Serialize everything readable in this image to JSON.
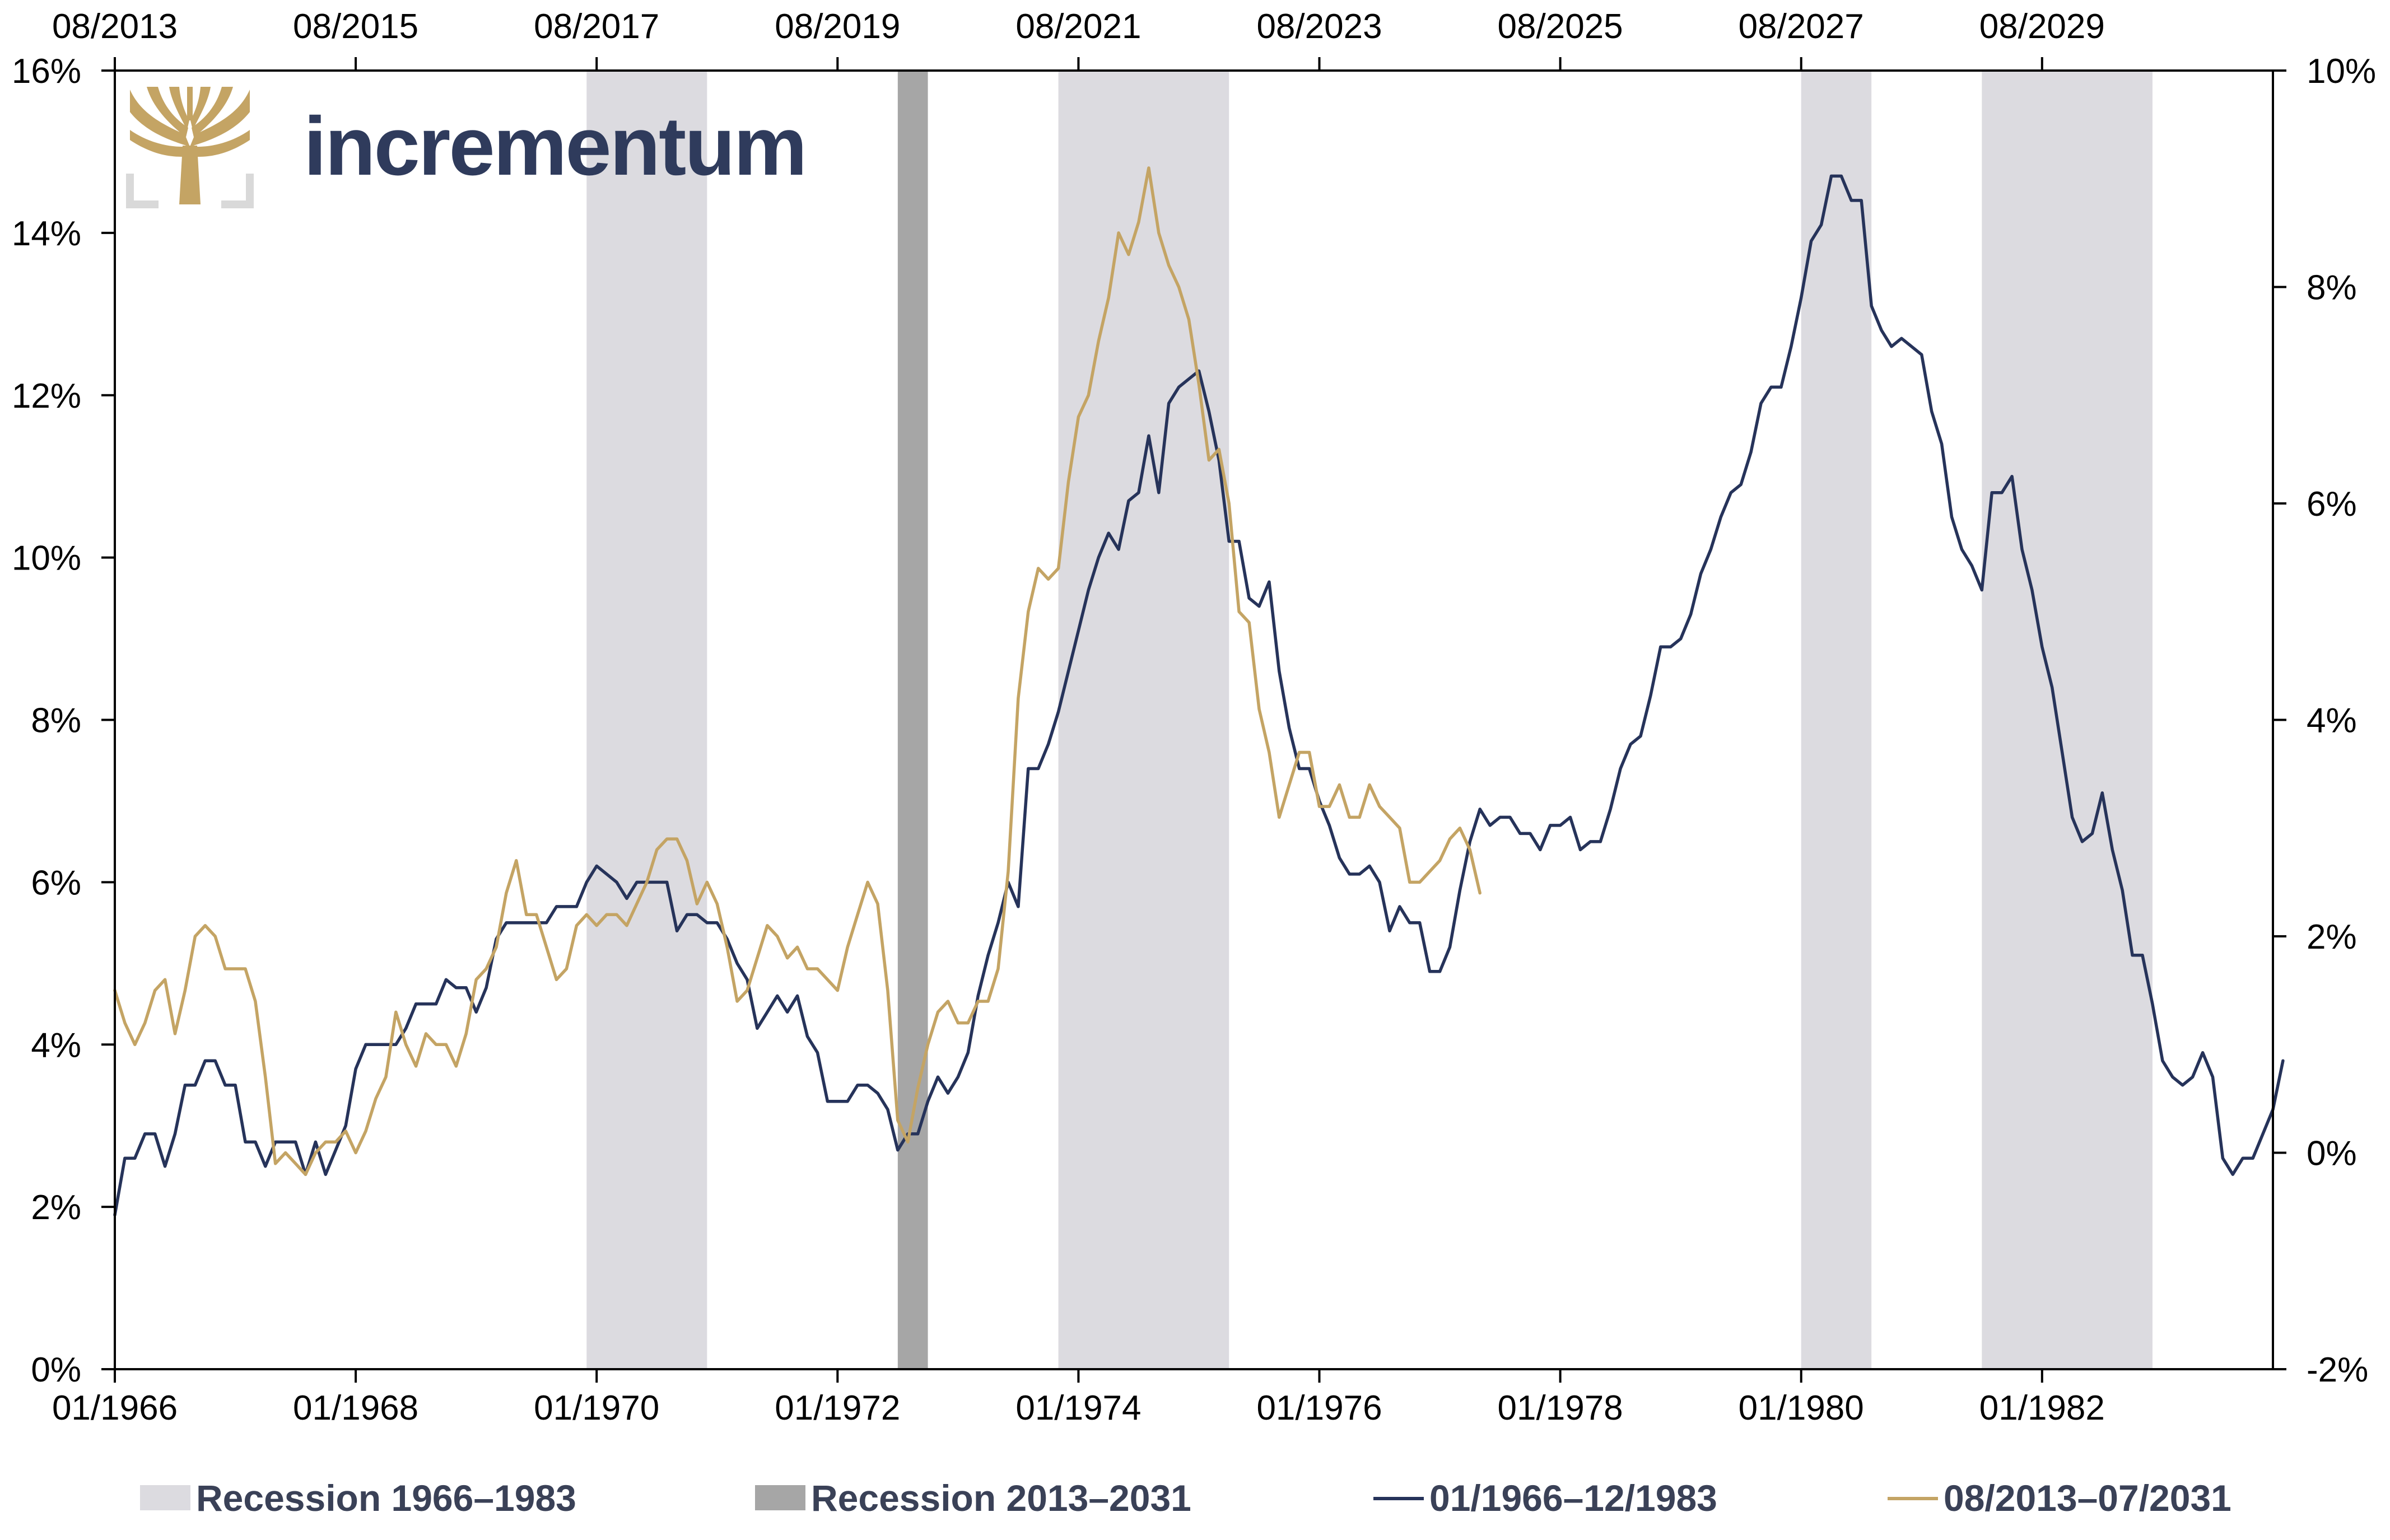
{
  "brand": {
    "name": "incrementum",
    "logo_icon": "tree-icon",
    "color": "#2f3b5c",
    "gold": "#c4a464"
  },
  "chart_data": {
    "type": "line",
    "title": "",
    "x_bottom": {
      "start": "1966-01",
      "end": "1983-12",
      "tick_labels": [
        "01/1966",
        "01/1968",
        "01/1970",
        "01/1972",
        "01/1974",
        "01/1976",
        "01/1978",
        "01/1980",
        "01/1982"
      ]
    },
    "x_top": {
      "start": "2013-08",
      "end": "2031-07",
      "tick_labels": [
        "08/2013",
        "08/2015",
        "08/2017",
        "08/2019",
        "08/2021",
        "08/2023",
        "08/2025",
        "08/2027",
        "08/2029"
      ]
    },
    "y_left": {
      "min": 0,
      "max": 16,
      "step": 2,
      "unit": "%",
      "tick_labels": [
        "0%",
        "2%",
        "4%",
        "6%",
        "8%",
        "10%",
        "12%",
        "14%",
        "16%"
      ]
    },
    "y_right": {
      "min": -2,
      "max": 10,
      "step": 2,
      "unit": "%",
      "tick_labels": [
        "-2%",
        "0%",
        "2%",
        "4%",
        "6%",
        "8%",
        "10%"
      ]
    },
    "grid": false,
    "legend_position": "bottom",
    "recessions": [
      {
        "series": "Recession 1966–1983",
        "start": "1969-12",
        "end": "1970-11",
        "color": "#dcdbe0"
      },
      {
        "series": "Recession 2013–2031",
        "start": "2020-02",
        "end": "2020-04",
        "color": "#a6a6a6"
      },
      {
        "series": "Recession 1966–1983",
        "start": "1973-11",
        "end": "1975-03",
        "color": "#dcdbe0"
      },
      {
        "series": "Recession 1966–1983",
        "start": "1980-01",
        "end": "1980-07",
        "color": "#dcdbe0"
      },
      {
        "series": "Recession 1966–1983",
        "start": "1981-07",
        "end": "1982-11",
        "color": "#dcdbe0"
      }
    ],
    "series": [
      {
        "name": "01/1966–12/1983",
        "axis": "left",
        "color": "#26335a",
        "start": "1966-01",
        "values": [
          1.9,
          2.6,
          2.6,
          2.9,
          2.9,
          2.5,
          2.9,
          3.5,
          3.5,
          3.8,
          3.8,
          3.5,
          3.5,
          2.8,
          2.8,
          2.5,
          2.8,
          2.8,
          2.8,
          2.4,
          2.8,
          2.4,
          2.7,
          3.0,
          3.7,
          4.0,
          4.0,
          4.0,
          4.0,
          4.2,
          4.5,
          4.5,
          4.5,
          4.8,
          4.7,
          4.7,
          4.4,
          4.7,
          5.3,
          5.5,
          5.5,
          5.5,
          5.5,
          5.5,
          5.7,
          5.7,
          5.7,
          6.0,
          6.2,
          6.1,
          6.0,
          5.8,
          6.0,
          6.0,
          6.0,
          6.0,
          5.4,
          5.6,
          5.6,
          5.5,
          5.5,
          5.3,
          5.0,
          4.8,
          4.2,
          4.4,
          4.6,
          4.4,
          4.6,
          4.1,
          3.9,
          3.3,
          3.3,
          3.3,
          3.5,
          3.5,
          3.4,
          3.2,
          2.7,
          2.9,
          2.9,
          3.3,
          3.6,
          3.4,
          3.6,
          3.9,
          4.6,
          5.1,
          5.5,
          6.0,
          5.7,
          7.4,
          7.4,
          7.7,
          8.1,
          8.6,
          9.1,
          9.6,
          10.0,
          10.3,
          10.1,
          10.7,
          10.8,
          11.5,
          10.8,
          11.9,
          12.1,
          12.2,
          12.3,
          11.8,
          11.2,
          10.2,
          10.2,
          9.5,
          9.4,
          9.7,
          8.6,
          7.9,
          7.4,
          7.4,
          7.0,
          6.7,
          6.3,
          6.1,
          6.1,
          6.2,
          6.0,
          5.4,
          5.7,
          5.5,
          5.5,
          4.9,
          4.9,
          5.2,
          5.9,
          6.5,
          6.9,
          6.7,
          6.8,
          6.8,
          6.6,
          6.6,
          6.4,
          6.7,
          6.7,
          6.8,
          6.4,
          6.5,
          6.5,
          6.9,
          7.4,
          7.7,
          7.8,
          8.3,
          8.9,
          8.9,
          9.0,
          9.3,
          9.8,
          10.1,
          10.5,
          10.8,
          10.9,
          11.3,
          11.9,
          12.1,
          12.1,
          12.6,
          13.2,
          13.9,
          14.1,
          14.7,
          14.7,
          14.4,
          14.4,
          13.1,
          12.8,
          12.6,
          12.7,
          12.6,
          12.5,
          11.8,
          11.4,
          10.5,
          10.1,
          9.9,
          9.6,
          10.8,
          10.8,
          11.0,
          10.1,
          9.6,
          8.9,
          8.4,
          7.6,
          6.8,
          6.5,
          6.6,
          7.1,
          6.4,
          5.9,
          5.1,
          5.1,
          4.5,
          3.8,
          3.6,
          3.5,
          3.6,
          3.9,
          3.6,
          2.6,
          2.4,
          2.6,
          2.6,
          2.9,
          3.2,
          3.8
        ]
      },
      {
        "name": "08/2013–07/2031",
        "axis": "right",
        "color": "#c4a464",
        "start": "2013-08",
        "values": [
          1.5,
          1.2,
          1.0,
          1.2,
          1.5,
          1.6,
          1.1,
          1.5,
          2.0,
          2.1,
          2.0,
          1.7,
          1.7,
          1.7,
          1.4,
          0.7,
          -0.1,
          -0.0,
          -0.1,
          -0.2,
          0.0,
          0.1,
          0.1,
          0.2,
          -0.0,
          0.2,
          0.5,
          0.7,
          1.3,
          1.0,
          0.8,
          1.1,
          1.0,
          1.0,
          0.8,
          1.1,
          1.6,
          1.7,
          1.9,
          2.4,
          2.7,
          2.2,
          2.2,
          1.9,
          1.6,
          1.7,
          2.1,
          2.2,
          2.1,
          2.2,
          2.2,
          2.1,
          2.3,
          2.5,
          2.8,
          2.9,
          2.9,
          2.7,
          2.3,
          2.5,
          2.3,
          1.9,
          1.4,
          1.5,
          1.8,
          2.1,
          2.0,
          1.8,
          1.9,
          1.7,
          1.7,
          1.6,
          1.5,
          1.9,
          2.2,
          2.5,
          2.3,
          1.5,
          0.3,
          0.1,
          0.6,
          1.0,
          1.3,
          1.4,
          1.2,
          1.2,
          1.4,
          1.4,
          1.7,
          2.6,
          4.2,
          5.0,
          5.4,
          5.3,
          5.4,
          6.2,
          6.8,
          7.0,
          7.5,
          7.9,
          8.5,
          8.3,
          8.6,
          9.1,
          8.5,
          8.2,
          8.0,
          7.7,
          7.1,
          6.4,
          6.5,
          6.0,
          5.0,
          4.9,
          4.1,
          3.7,
          3.1,
          3.4,
          3.7,
          3.7,
          3.2,
          3.2,
          3.4,
          3.1,
          3.1,
          3.4,
          3.2,
          3.1,
          3.0,
          2.5,
          2.5,
          2.6,
          2.7,
          2.9,
          3.0,
          2.8,
          2.4
        ]
      }
    ]
  },
  "legend": {
    "items": [
      {
        "label": "Recession 1966–1983",
        "kind": "swatch",
        "color": "#dcdbe0"
      },
      {
        "label": "Recession 2013–2031",
        "kind": "swatch",
        "color": "#a6a6a6"
      },
      {
        "label": "01/1966–12/1983",
        "kind": "line",
        "color": "#26335a"
      },
      {
        "label": "08/2013–07/2031",
        "kind": "line",
        "color": "#c4a464"
      }
    ]
  }
}
